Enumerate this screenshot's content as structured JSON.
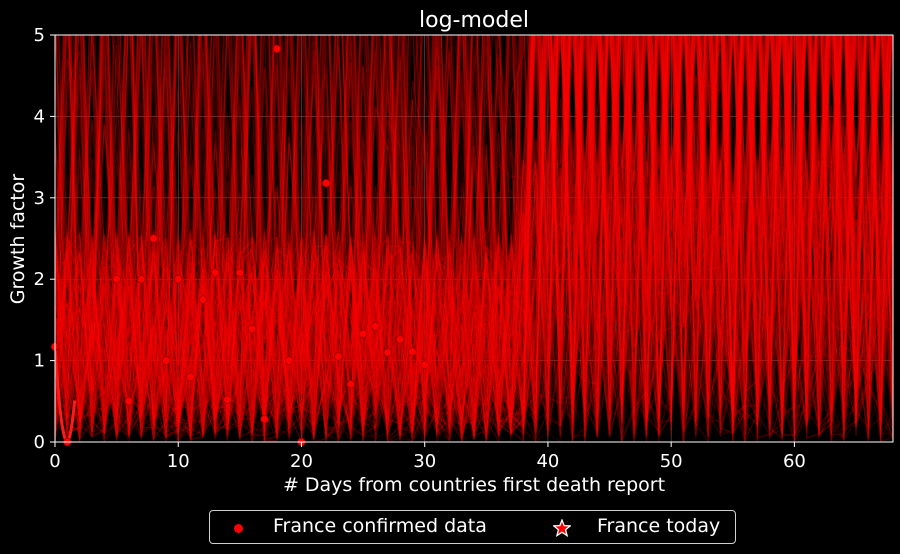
{
  "chart_data": {
    "type": "line",
    "title": "log-model",
    "xlabel": "# Days from countries first death report",
    "ylabel": "Growth factor",
    "xlim": [
      0,
      68
    ],
    "ylim": [
      0,
      5
    ],
    "xticks": [
      0,
      10,
      20,
      30,
      40,
      50,
      60
    ],
    "yticks": [
      0,
      1,
      2,
      3,
      4,
      5
    ],
    "grid": true,
    "legend_placement": "below",
    "colors": {
      "background": "#000000",
      "series": "#ff0000",
      "star_edge": "#ffffff"
    },
    "series": [
      {
        "name": "France confirmed data",
        "kind": "scatter",
        "points": [
          [
            0,
            1.17
          ],
          [
            1,
            0.0
          ],
          [
            5,
            2.0
          ],
          [
            6,
            0.5
          ],
          [
            7,
            2.0
          ],
          [
            8,
            2.5
          ],
          [
            9,
            1.0
          ],
          [
            10,
            2.0
          ],
          [
            11,
            0.8
          ],
          [
            12,
            1.75
          ],
          [
            13,
            2.08
          ],
          [
            14,
            0.52
          ],
          [
            15,
            2.08
          ],
          [
            16,
            1.39
          ],
          [
            17,
            0.28
          ],
          [
            18,
            4.83
          ],
          [
            19,
            1.0
          ],
          [
            20,
            0.0
          ],
          [
            22,
            3.18
          ],
          [
            23,
            1.05
          ],
          [
            24,
            0.71
          ],
          [
            25,
            1.33
          ],
          [
            26,
            1.42
          ],
          [
            27,
            1.1
          ],
          [
            28,
            1.26
          ],
          [
            29,
            1.11
          ],
          [
            30,
            0.95
          ]
        ]
      },
      {
        "name": "France today",
        "kind": "star",
        "points": []
      },
      {
        "name": "",
        "kind": "simulated-trajectories",
        "description_range": [
          0,
          68
        ],
        "count": 180
      }
    ],
    "legend": [
      "France confirmed data",
      "France today"
    ]
  }
}
